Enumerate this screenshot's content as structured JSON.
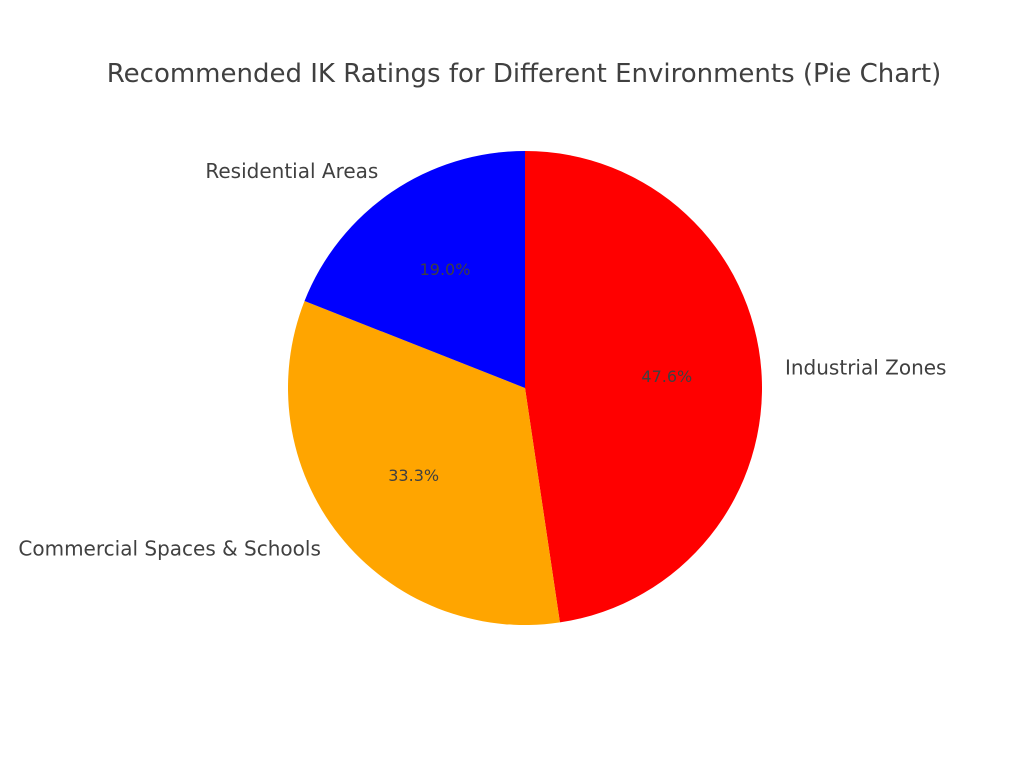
{
  "chart_data": {
    "type": "pie",
    "title": "Recommended IK Ratings for Different Environments (Pie Chart)",
    "categories": [
      "Industrial Zones",
      "Commercial Spaces & Schools",
      "Residential Areas"
    ],
    "values": [
      47.6,
      33.3,
      19.0
    ],
    "value_labels": [
      "47.6%",
      "33.3%",
      "19.0%"
    ],
    "colors": [
      "#ff0000",
      "#ffa500",
      "#0000ff"
    ],
    "start_angle_deg": 90,
    "direction": "clockwise",
    "legend": "none"
  }
}
